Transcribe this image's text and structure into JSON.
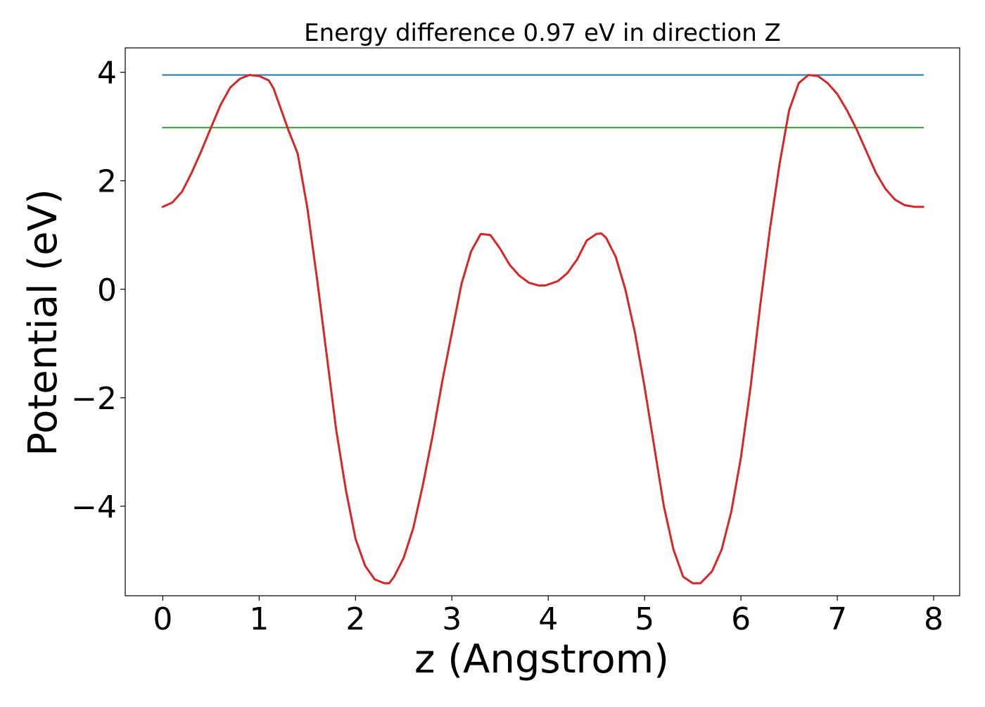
{
  "chart_data": {
    "type": "line",
    "title": "Energy difference 0.97 eV in direction Z",
    "xlabel": "z (Angstrom)",
    "ylabel": "Potential (eV)",
    "xlim": [
      -0.39,
      8.27
    ],
    "ylim": [
      -5.65,
      4.45
    ],
    "xticks": [
      0,
      1,
      2,
      3,
      4,
      5,
      6,
      7,
      8
    ],
    "yticks": [
      4,
      2,
      0,
      -2,
      -4
    ],
    "grid": false,
    "legend": "none",
    "series": [
      {
        "color": "#1f77b4",
        "x": [
          0,
          7.89
        ],
        "y": [
          3.95,
          3.95
        ]
      },
      {
        "color": "#2ca02c",
        "x": [
          0,
          7.89
        ],
        "y": [
          2.98,
          2.98
        ]
      },
      {
        "color": "#d62728",
        "x": [
          0,
          0.1,
          0.2,
          0.3,
          0.4,
          0.5,
          0.6,
          0.7,
          0.8,
          0.9,
          1.0,
          1.1,
          1.15,
          1.25,
          1.3,
          1.4,
          1.5,
          1.6,
          1.7,
          1.8,
          1.9,
          2.0,
          2.1,
          2.2,
          2.3,
          2.35,
          2.4,
          2.5,
          2.6,
          2.7,
          2.8,
          2.9,
          3.0,
          3.1,
          3.2,
          3.3,
          3.4,
          3.5,
          3.6,
          3.7,
          3.8,
          3.9,
          3.97,
          4.1,
          4.2,
          4.3,
          4.4,
          4.5,
          4.55,
          4.6,
          4.7,
          4.8,
          4.9,
          5.0,
          5.1,
          5.2,
          5.3,
          5.4,
          5.5,
          5.58,
          5.7,
          5.8,
          5.9,
          6.0,
          6.1,
          6.2,
          6.3,
          6.4,
          6.5,
          6.6,
          6.7,
          6.8,
          6.9,
          7.0,
          7.1,
          7.2,
          7.3,
          7.4,
          7.5,
          7.6,
          7.7,
          7.8,
          7.89
        ],
        "y": [
          1.52,
          1.6,
          1.8,
          2.15,
          2.55,
          2.98,
          3.4,
          3.72,
          3.88,
          3.95,
          3.93,
          3.85,
          3.7,
          3.2,
          2.95,
          2.5,
          1.5,
          0.2,
          -1.2,
          -2.6,
          -3.7,
          -4.6,
          -5.1,
          -5.35,
          -5.42,
          -5.42,
          -5.3,
          -4.95,
          -4.4,
          -3.6,
          -2.7,
          -1.7,
          -0.8,
          0.1,
          0.7,
          1.02,
          1.0,
          0.75,
          0.45,
          0.25,
          0.12,
          0.07,
          0.07,
          0.15,
          0.3,
          0.55,
          0.9,
          1.02,
          1.03,
          0.95,
          0.6,
          0.0,
          -0.8,
          -1.8,
          -2.9,
          -4.0,
          -4.8,
          -5.3,
          -5.42,
          -5.42,
          -5.2,
          -4.8,
          -4.1,
          -3.1,
          -1.8,
          -0.3,
          1.1,
          2.3,
          3.3,
          3.8,
          3.95,
          3.93,
          3.8,
          3.6,
          3.3,
          2.95,
          2.55,
          2.15,
          1.85,
          1.65,
          1.55,
          1.52,
          1.52
        ]
      }
    ]
  }
}
